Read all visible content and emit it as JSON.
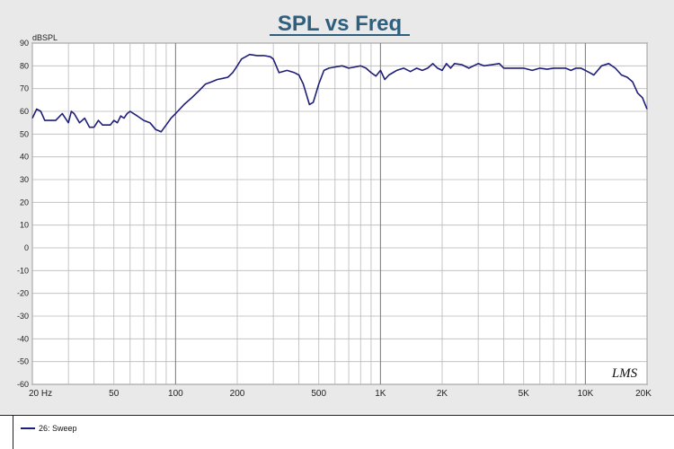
{
  "chart_data": {
    "type": "line",
    "title": "SPL vs Freq",
    "ylabel": "dBSPL",
    "xlabel": "",
    "x_scale": "log",
    "xlim": [
      20,
      20000
    ],
    "ylim": [
      -60,
      90
    ],
    "y_ticks": [
      90,
      80,
      70,
      60,
      50,
      40,
      30,
      20,
      10,
      0,
      -10,
      -20,
      -30,
      -40,
      -50,
      -60
    ],
    "x_ticks": [
      {
        "value": 20,
        "label": "20 Hz"
      },
      {
        "value": 50,
        "label": "50"
      },
      {
        "value": 100,
        "label": "100"
      },
      {
        "value": 200,
        "label": "200"
      },
      {
        "value": 500,
        "label": "500"
      },
      {
        "value": 1000,
        "label": "1K"
      },
      {
        "value": 2000,
        "label": "2K"
      },
      {
        "value": 5000,
        "label": "5K"
      },
      {
        "value": 10000,
        "label": "10K"
      },
      {
        "value": 20000,
        "label": "20K"
      }
    ],
    "grid": true,
    "watermark": "LMS",
    "series": [
      {
        "name": "26: Sweep",
        "color": "#1f1f7a",
        "x": [
          20,
          21,
          22,
          23,
          24,
          26,
          28,
          30,
          31,
          32,
          34,
          36,
          38,
          40,
          42,
          44,
          46,
          48,
          50,
          52,
          54,
          56,
          58,
          60,
          65,
          70,
          75,
          80,
          85,
          90,
          95,
          100,
          110,
          120,
          130,
          140,
          150,
          160,
          170,
          180,
          190,
          200,
          210,
          230,
          250,
          270,
          290,
          300,
          320,
          350,
          380,
          400,
          420,
          450,
          470,
          500,
          530,
          560,
          600,
          650,
          700,
          750,
          800,
          850,
          900,
          950,
          1000,
          1050,
          1100,
          1200,
          1300,
          1400,
          1500,
          1600,
          1700,
          1800,
          1900,
          2000,
          2100,
          2200,
          2300,
          2500,
          2700,
          3000,
          3200,
          3500,
          3800,
          4000,
          4500,
          5000,
          5500,
          6000,
          6500,
          7000,
          7500,
          8000,
          8500,
          9000,
          9500,
          10000,
          10500,
          11000,
          12000,
          13000,
          14000,
          15000,
          16000,
          17000,
          18000,
          19000,
          20000
        ],
        "y": [
          57,
          61,
          60,
          56,
          56,
          56,
          59,
          55,
          60,
          59,
          55,
          57,
          53,
          53,
          56,
          54,
          54,
          54,
          56,
          55,
          58,
          57,
          59,
          60,
          58,
          56,
          55,
          52,
          51,
          54,
          57,
          59,
          63,
          66,
          69,
          72,
          73,
          74,
          74.5,
          75,
          77,
          80,
          83,
          85,
          84.5,
          84.5,
          84,
          83,
          77,
          78,
          77,
          76,
          72,
          63,
          64,
          72,
          78,
          79,
          79.5,
          80,
          79,
          79.5,
          80,
          79,
          77,
          75.5,
          78,
          74,
          76,
          78,
          79,
          77.5,
          79,
          78,
          79,
          81,
          79,
          78,
          81,
          79,
          81,
          80.5,
          79,
          81,
          80,
          80.5,
          81,
          79,
          79,
          79,
          78,
          79,
          78.5,
          79,
          79,
          79,
          78,
          79,
          79,
          78,
          77,
          76,
          80,
          81,
          79,
          76,
          75,
          73,
          68,
          66,
          61
        ]
      }
    ]
  },
  "legend": {
    "entries": [
      {
        "label": "26: Sweep",
        "color": "#1f1f7a"
      }
    ]
  }
}
